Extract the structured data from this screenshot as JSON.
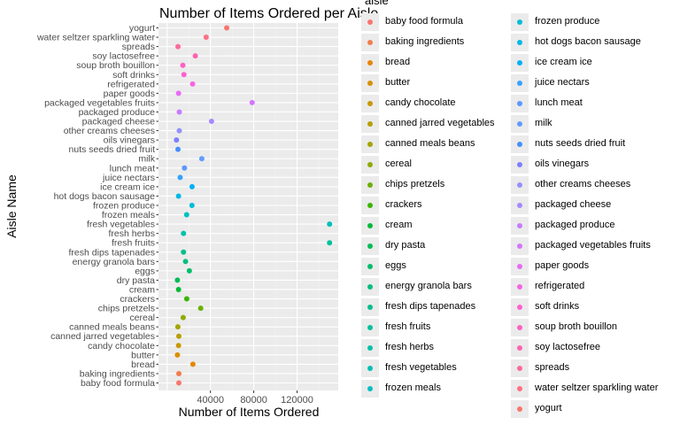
{
  "chart_data": {
    "type": "scatter",
    "title": "Number of Items Ordered per Aisle",
    "xlabel": "Number of Items Ordered",
    "ylabel": "Aisle Name",
    "xlim": [
      0,
      150000
    ],
    "xticks": [
      40000,
      80000,
      120000
    ],
    "x_tick_labels": [
      "40000",
      "80000",
      "120000"
    ],
    "grid": true,
    "legend_title": "aisle",
    "legend_position": "right",
    "categories": [
      "baby food formula",
      "baking ingredients",
      "bread",
      "butter",
      "candy chocolate",
      "canned jarred vegetables",
      "canned meals beans",
      "cereal",
      "chips pretzels",
      "crackers",
      "cream",
      "dry pasta",
      "eggs",
      "energy granola bars",
      "fresh dips tapenades",
      "fresh fruits",
      "fresh herbs",
      "fresh vegetables",
      "frozen meals",
      "frozen produce",
      "hot dogs bacon sausage",
      "ice cream ice",
      "juice nectars",
      "lunch meat",
      "milk",
      "nuts seeds dried fruit",
      "oils vinegars",
      "other creams cheeses",
      "packaged cheese",
      "packaged produce",
      "packaged vegetables fruits",
      "paper goods",
      "refrigerated",
      "soft drinks",
      "soup broth bouillon",
      "soy lactosefree",
      "spreads",
      "water seltzer sparkling water",
      "yogurt"
    ],
    "values": [
      10800,
      10800,
      23800,
      9500,
      10500,
      10800,
      9900,
      14800,
      31000,
      18100,
      10500,
      9500,
      20500,
      17000,
      15100,
      150000,
      15100,
      150000,
      18000,
      22900,
      10500,
      23000,
      12000,
      16000,
      32000,
      10000,
      8600,
      11200,
      41000,
      11200,
      78500,
      10500,
      23500,
      15500,
      14500,
      26000,
      10000,
      36000,
      55000
    ],
    "colors": [
      "#F8766D",
      "#F07E4D",
      "#E58700",
      "#D89000",
      "#C99800",
      "#B79F00",
      "#A3A500",
      "#8EAB00",
      "#6BB100",
      "#39B600",
      "#00BA38",
      "#00BC55",
      "#00BE6B",
      "#00BF7D",
      "#00C08D",
      "#00C19C",
      "#00C1AA",
      "#00C0B7",
      "#00BFC4",
      "#00BCD8",
      "#00B8E7",
      "#00B0F6",
      "#35A2FF",
      "#5B98FF",
      "#619CFF",
      "#458FFF",
      "#7E7FFF",
      "#9590FF",
      "#A58AFF",
      "#C77CFF",
      "#D575FE",
      "#E76BF3",
      "#F564E3",
      "#FD61D1",
      "#FF61C3",
      "#FF64B0",
      "#FF6A98",
      "#FE6F84",
      "#F8766D"
    ]
  }
}
